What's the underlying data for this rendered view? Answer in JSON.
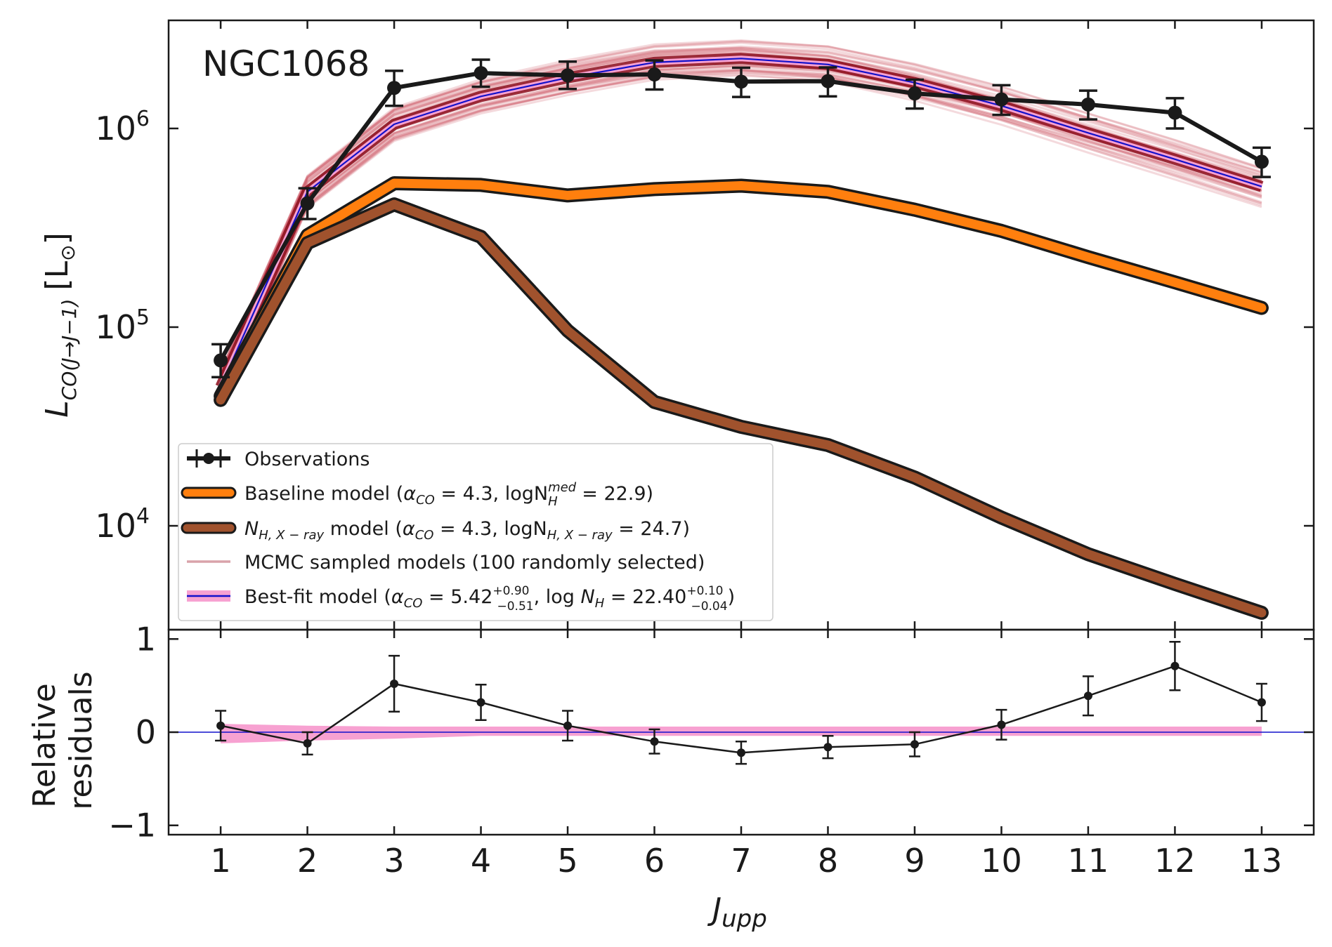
{
  "chart_data": [
    {
      "type": "line",
      "panel": "main",
      "annotation": "NGC1068",
      "xlabel_main": "J",
      "xlabel_sub": "upp",
      "ylabel_main": "L",
      "ylabel_sub": "CO(J→J−1)",
      "ylabel_unit": "[L",
      "ylabel_unit_sub": "⊙",
      "ylabel_unit_close": "]",
      "yscale": "log",
      "ylim": [
        3000,
        3500000
      ],
      "xlim": [
        0.4,
        13.6
      ],
      "x": [
        1,
        2,
        3,
        4,
        5,
        6,
        7,
        8,
        9,
        10,
        11,
        12,
        13
      ],
      "x_tick_labels": [
        "1",
        "2",
        "3",
        "4",
        "5",
        "6",
        "7",
        "8",
        "9",
        "10",
        "11",
        "12",
        "13"
      ],
      "y_ticks": [
        {
          "value": 10000,
          "base": "10",
          "exp": "4"
        },
        {
          "value": 100000,
          "base": "10",
          "exp": "5"
        },
        {
          "value": 1000000,
          "base": "10",
          "exp": "6"
        }
      ],
      "series": [
        {
          "name": "Observations",
          "color": "#1a1a1a",
          "values": [
            68000,
            420000,
            1600000,
            1900000,
            1850000,
            1870000,
            1720000,
            1730000,
            1500000,
            1400000,
            1320000,
            1200000,
            680000
          ],
          "yerr_low": [
            12000,
            70000,
            300000,
            280000,
            270000,
            300000,
            280000,
            280000,
            240000,
            230000,
            210000,
            200000,
            110000
          ],
          "yerr_high": [
            14000,
            80000,
            350000,
            320000,
            320000,
            330000,
            300000,
            300000,
            260000,
            250000,
            230000,
            220000,
            120000
          ]
        },
        {
          "name": "Baseline model",
          "color": "#ff7f0e",
          "values": [
            45000,
            290000,
            530000,
            520000,
            460000,
            495000,
            515000,
            480000,
            390000,
            305000,
            225000,
            168000,
            125000
          ]
        },
        {
          "name": "N_H,X-ray model",
          "color": "#a0522d",
          "values": [
            43000,
            265000,
            415000,
            285000,
            96000,
            42000,
            31500,
            25500,
            17500,
            11000,
            7200,
            5100,
            3650
          ]
        },
        {
          "name": "MCMC sampled models",
          "color": "#cc5566",
          "values": [
            50000,
            480000,
            1050000,
            1450000,
            1800000,
            2150000,
            2250000,
            2100000,
            1700000,
            1300000,
            950000,
            700000,
            510000
          ]
        },
        {
          "name": "Best-fit model",
          "color": "#1111cc",
          "band_color": "#f7a1d1",
          "values": [
            50000,
            480000,
            1050000,
            1450000,
            1800000,
            2150000,
            2250000,
            2100000,
            1700000,
            1300000,
            950000,
            700000,
            510000
          ]
        }
      ],
      "legend": [
        {
          "key": "observations",
          "text": "Observations"
        },
        {
          "key": "baseline",
          "prefix": "Baseline model (",
          "alpha_sym": "α",
          "alpha_sub": "CO",
          "mid": " = 4.3, logN",
          "n_sup": "med",
          "n_sub": "H",
          "end": " = 22.9)"
        },
        {
          "key": "nh",
          "n_sym": "N",
          "n_sub": "H, X − ray",
          "mid1": " model (",
          "alpha_sym": "α",
          "alpha_sub": "CO",
          "mid2": " = 4.3, logN",
          "n_sub2": "H, X − ray",
          "end": " = 24.7)"
        },
        {
          "key": "mcmc",
          "text": "MCMC sampled models (100 randomly selected)"
        },
        {
          "key": "bestfit",
          "prefix": "Best-fit model (",
          "alpha_sym": "α",
          "alpha_sub": "CO",
          "alpha_val": " = 5.42",
          "alpha_sup": "+0.90",
          "alpha_subval": "−0.51",
          "mid": ", log ",
          "n_sym": "N",
          "n_sub": "H",
          "n_val": " = 22.40",
          "n_sup": "+0.10",
          "n_subval": "−0.04",
          "end": ")"
        }
      ],
      "legend_loc": "lower-left"
    },
    {
      "type": "line",
      "panel": "residuals",
      "ylabel_line1": "Relative",
      "ylabel_line2": "residuals",
      "ylim": [
        -1.1,
        1.1
      ],
      "y_tick_labels": [
        {
          "value": 1,
          "text": "1"
        },
        {
          "value": 0,
          "text": "0"
        },
        {
          "value": -1,
          "text": "−1"
        }
      ],
      "x": [
        1,
        2,
        3,
        4,
        5,
        6,
        7,
        8,
        9,
        10,
        11,
        12,
        13
      ],
      "values": [
        0.07,
        -0.12,
        0.52,
        0.32,
        0.07,
        -0.1,
        -0.22,
        -0.16,
        -0.13,
        0.08,
        0.39,
        0.71,
        0.32
      ],
      "yerr": [
        0.16,
        0.12,
        0.3,
        0.19,
        0.16,
        0.13,
        0.12,
        0.12,
        0.13,
        0.16,
        0.21,
        0.26,
        0.2
      ],
      "band_low": [
        -0.12,
        -0.09,
        -0.07,
        -0.04,
        -0.04,
        -0.04,
        -0.04,
        -0.04,
        -0.04,
        -0.04,
        -0.04,
        -0.04,
        -0.04
      ],
      "band_high": [
        0.09,
        0.07,
        0.06,
        0.06,
        0.06,
        0.06,
        0.06,
        0.06,
        0.06,
        0.06,
        0.06,
        0.06,
        0.06
      ],
      "reference_line": 0
    }
  ]
}
